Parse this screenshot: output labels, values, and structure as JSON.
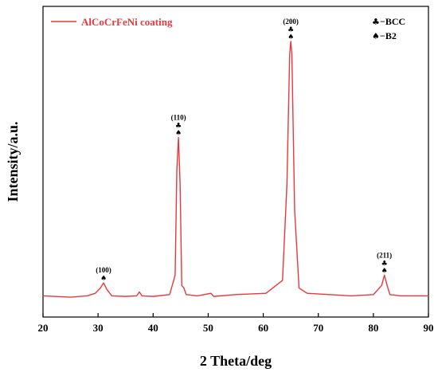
{
  "chart_data": {
    "type": "line",
    "xlabel": "2 Theta/deg",
    "ylabel": "Intensity/a.u.",
    "xlim": [
      20,
      90
    ],
    "x_ticks": [
      "20",
      "30",
      "40",
      "50",
      "60",
      "70",
      "80",
      "90"
    ],
    "y_ticks_shown": false,
    "grid": false,
    "legend_position": "top-left",
    "series": [
      {
        "name": "AlCoCrFeNi coating",
        "color": "#e8383d",
        "x": [
          20,
          25,
          28,
          29.5,
          30.4,
          31,
          31.6,
          32.5,
          35,
          37,
          37.5,
          38,
          40,
          43,
          44.0,
          44.3,
          44.6,
          44.9,
          45.2,
          45.6,
          46,
          48,
          50.5,
          51,
          55,
          60.5,
          63.5,
          64.3,
          64.8,
          65.0,
          65.2,
          65.7,
          66.5,
          68,
          72,
          76,
          80,
          81.5,
          82.0,
          82.5,
          83,
          85,
          90
        ],
        "y": [
          0.02,
          0.015,
          0.02,
          0.03,
          0.05,
          0.07,
          0.045,
          0.02,
          0.018,
          0.02,
          0.035,
          0.02,
          0.018,
          0.025,
          0.1,
          0.5,
          0.63,
          0.45,
          0.06,
          0.05,
          0.025,
          0.02,
          0.03,
          0.018,
          0.025,
          0.03,
          0.08,
          0.45,
          0.95,
          1.0,
          0.95,
          0.35,
          0.05,
          0.03,
          0.025,
          0.02,
          0.025,
          0.06,
          0.1,
          0.06,
          0.025,
          0.02,
          0.02
        ]
      }
    ],
    "annotations": [
      {
        "x": 31,
        "y": 0.07,
        "label": "(100)",
        "phases": [
          "B2"
        ]
      },
      {
        "x": 44.6,
        "y": 0.63,
        "label": "(110)",
        "phases": [
          "BCC",
          "B2"
        ]
      },
      {
        "x": 65.0,
        "y": 1.0,
        "label": "(200)",
        "phases": [
          "BCC",
          "B2"
        ]
      },
      {
        "x": 82.0,
        "y": 0.1,
        "label": "(211)",
        "phases": [
          "BCC",
          "B2"
        ]
      }
    ],
    "phase_key": [
      {
        "symbol": "♣",
        "phase": "BCC",
        "text": "−BCC"
      },
      {
        "symbol": "♠",
        "phase": "B2",
        "text": "−B2"
      }
    ]
  }
}
